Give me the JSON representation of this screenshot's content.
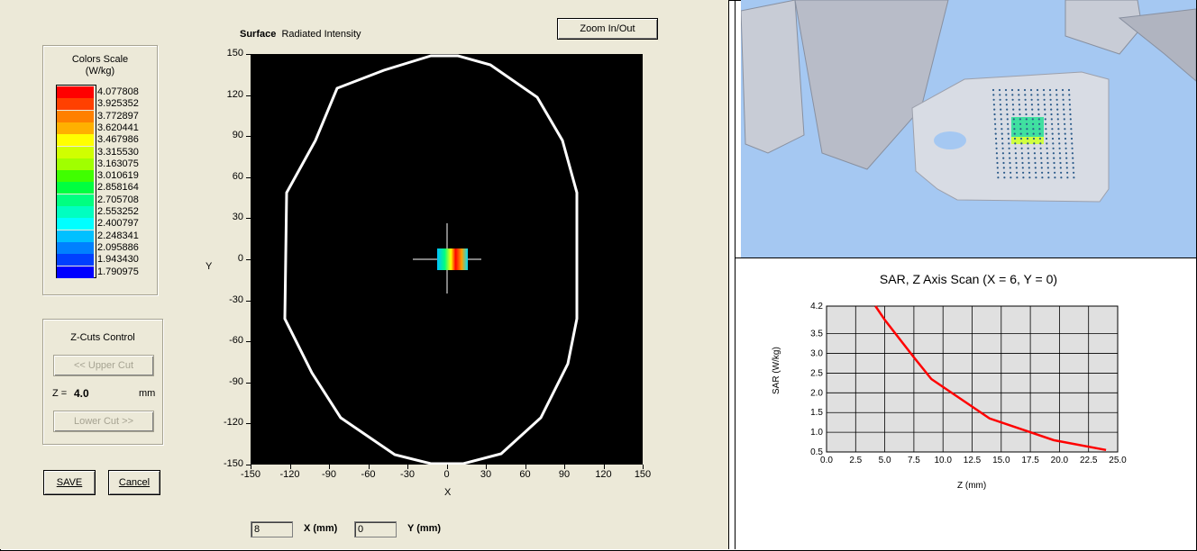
{
  "surface": {
    "label": "Surface",
    "mode": "Radiated Intensity"
  },
  "zoom_button": "Zoom In/Out",
  "legend": {
    "title": "Colors Scale",
    "unit": "(W/kg)",
    "values": [
      "4.077808",
      "3.925352",
      "3.772897",
      "3.620441",
      "3.467986",
      "3.315530",
      "3.163075",
      "3.010619",
      "2.858164",
      "2.705708",
      "2.553252",
      "2.400797",
      "2.248341",
      "2.095886",
      "1.943430",
      "1.790975"
    ],
    "colors": [
      "#ff0000",
      "#ff4000",
      "#ff8000",
      "#ffb000",
      "#ffff00",
      "#d0ff00",
      "#a0ff00",
      "#40ff00",
      "#00ff40",
      "#00ff80",
      "#00ffc0",
      "#00ffff",
      "#00c0ff",
      "#0080ff",
      "#0040ff",
      "#0000ff"
    ]
  },
  "zcuts": {
    "title": "Z-Cuts Control",
    "upper": "<< Upper Cut",
    "z_label": "Z =",
    "z_value": "4.0",
    "z_unit": "mm",
    "lower": "Lower Cut >>"
  },
  "buttons": {
    "save": "SAVE",
    "cancel": "Cancel"
  },
  "plot": {
    "xlabel": "X",
    "ylabel": "Y",
    "xticks": [
      "-150",
      "-120",
      "-90",
      "-60",
      "-30",
      "0",
      "30",
      "60",
      "90",
      "120",
      "150"
    ],
    "yticks": [
      "150",
      "120",
      "90",
      "60",
      "30",
      "0",
      "-30",
      "-60",
      "-90",
      "-120",
      "-150"
    ]
  },
  "coords": {
    "x_value": "8",
    "x_label": "X (mm)",
    "y_value": "0",
    "y_label": "Y (mm)"
  },
  "chart_data": {
    "type": "line",
    "title": "SAR, Z Axis Scan (X = 6, Y = 0)",
    "xlabel": "Z (mm)",
    "ylabel": "SAR (W/kg)",
    "xlim": [
      0,
      25
    ],
    "ylim": [
      0.5,
      4.2
    ],
    "xticks": [
      "0.0",
      "2.5",
      "5.0",
      "7.5",
      "10.0",
      "12.5",
      "15.0",
      "17.5",
      "20.0",
      "22.5",
      "25.0"
    ],
    "yticks": [
      "4.2",
      "3.5",
      "3.0",
      "2.5",
      "2.0",
      "1.5",
      "1.0",
      "0.5"
    ],
    "series": [
      {
        "values_x": [
          4.2,
          5.0,
          7.5,
          9.0,
          10.0,
          12.5,
          14.0,
          17.5,
          19.5,
          24.0
        ],
        "values_y": [
          4.2,
          3.85,
          2.9,
          2.35,
          2.15,
          1.65,
          1.35,
          1.0,
          0.8,
          0.55
        ],
        "color": "#ff0000"
      }
    ],
    "grid": true
  }
}
